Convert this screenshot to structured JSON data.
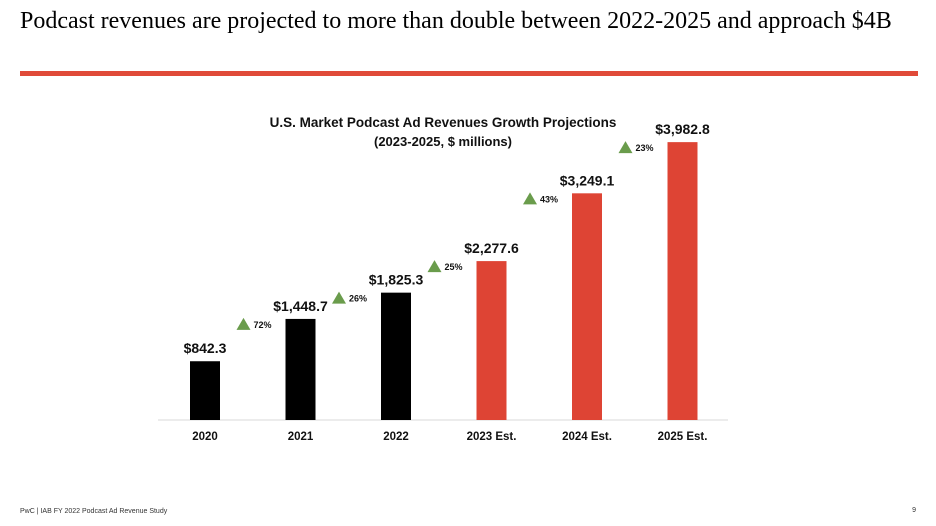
{
  "slide": {
    "headline": "Podcast revenues are projected to more than double between 2022-2025 and approach $4B",
    "footer": "PwC | IAB FY 2022 Podcast Ad Revenue Study",
    "page_number": "9"
  },
  "colors": {
    "rule": "#e04a39",
    "actual_bar": "#000000",
    "projected_bar": "#de4434",
    "growth_marker": "#6a9c4c",
    "axis": "#d9d9d9"
  },
  "chart_data": {
    "type": "bar",
    "title": "U.S. Market Podcast Ad Revenues Growth Projections",
    "subtitle": "(2023-2025, $ millions)",
    "categories": [
      "2020",
      "2021",
      "2022",
      "2023 Est.",
      "2024 Est.",
      "2025 Est."
    ],
    "values": [
      842.3,
      1448.7,
      1825.3,
      2277.6,
      3249.1,
      3982.8
    ],
    "value_labels": [
      "$842.3",
      "$1,448.7",
      "$1,825.3",
      "$2,277.6",
      "$3,249.1",
      "$3,982.8"
    ],
    "estimated": [
      false,
      false,
      false,
      true,
      true,
      true
    ],
    "growth_labels": [
      "72%",
      "26%",
      "25%",
      "43%",
      "23%"
    ],
    "xlabel": "",
    "ylabel": "",
    "ylim": [
      0,
      4300
    ],
    "grid": false,
    "legend": "none"
  }
}
